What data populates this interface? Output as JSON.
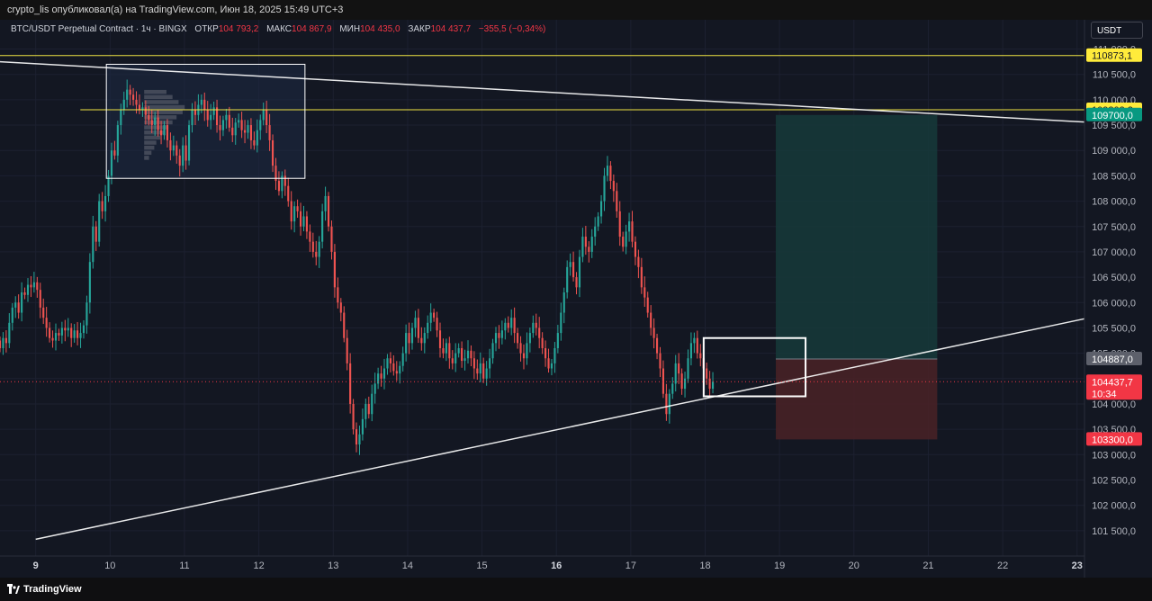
{
  "header": {
    "publish_line": "crypto_lis опубликовал(а) на TradingView.com, Июн 18, 2025 15:49 UTC+3"
  },
  "symbol": {
    "name": "BTC/USDT Perpetual Contract · 1ч · BINGX",
    "open_label": "ОТКР",
    "open": "104 793,2",
    "high_label": "МАКС",
    "high": "104 867,9",
    "low_label": "МИН",
    "low": "104 435,0",
    "close_label": "ЗАКР",
    "close": "104 437,7",
    "change": "−355,5 (−0,34%)"
  },
  "currency_button": "USDT",
  "footer": {
    "brand": "TradingView"
  },
  "colors": {
    "background": "#131722",
    "up": "#26a69a",
    "down": "#ef5350",
    "yellow_line": "#f0e442",
    "trend_line": "#ffffff",
    "target_zone": "#163a3a",
    "stop_zone": "#4a2226",
    "price_label_red": "#f23645",
    "price_label_teal": "#089981",
    "price_label_grey": "#5d606b",
    "price_label_yellow": "#ffeb3b"
  },
  "chart_data": {
    "type": "candlestick",
    "ylim": [
      101000,
      111400
    ],
    "y_ticks": [
      101500,
      102000,
      102500,
      103000,
      103500,
      104000,
      104500,
      105000,
      105500,
      106000,
      106500,
      107000,
      107500,
      108000,
      108500,
      109000,
      109500,
      110000,
      110500,
      111000
    ],
    "y_tick_labels": [
      "101 500,0",
      "102 000,0",
      "102 500,0",
      "103 000,0",
      "103 500,0",
      "104 000,0",
      "104 500,0",
      "105 000,0",
      "105 500,0",
      "106 000,0",
      "106 500,0",
      "107 000,0",
      "107 500,0",
      "108 000,0",
      "108 500,0",
      "109 000,0",
      "109 500,0",
      "110 000,0",
      "110 500,0",
      "111 000,0"
    ],
    "x_domain_days": [
      8.52,
      23.1
    ],
    "x_ticks": [
      {
        "day": 9,
        "label": "9",
        "major": true
      },
      {
        "day": 10,
        "label": "10",
        "major": false
      },
      {
        "day": 11,
        "label": "11",
        "major": false
      },
      {
        "day": 12,
        "label": "12",
        "major": false
      },
      {
        "day": 13,
        "label": "13",
        "major": false
      },
      {
        "day": 14,
        "label": "14",
        "major": false
      },
      {
        "day": 15,
        "label": "15",
        "major": false
      },
      {
        "day": 16,
        "label": "16",
        "major": true
      },
      {
        "day": 17,
        "label": "17",
        "major": false
      },
      {
        "day": 18,
        "label": "18",
        "major": false
      },
      {
        "day": 19,
        "label": "19",
        "major": false
      },
      {
        "day": 20,
        "label": "20",
        "major": false
      },
      {
        "day": 21,
        "label": "21",
        "major": false
      },
      {
        "day": 22,
        "label": "22",
        "major": false
      },
      {
        "day": 23,
        "label": "23",
        "major": true
      }
    ],
    "candle_start_day": 8.52,
    "candle_step_days": 0.041667,
    "closes": [
      105100,
      105300,
      105200,
      105600,
      105900,
      106000,
      105800,
      106200,
      106150,
      106350,
      106300,
      106400,
      106250,
      105900,
      105700,
      105500,
      105300,
      105250,
      105400,
      105350,
      105500,
      105450,
      105500,
      105300,
      105450,
      105300,
      105400,
      105550,
      106000,
      106800,
      107500,
      107200,
      108000,
      107800,
      108100,
      108500,
      109000,
      108900,
      109500,
      109800,
      110000,
      110200,
      110100,
      110000,
      109900,
      109800,
      109850,
      109700,
      109600,
      109500,
      109650,
      109400,
      109300,
      109500,
      109200,
      109000,
      109100,
      108900,
      108700,
      109100,
      108800,
      109500,
      109800,
      109700,
      109900,
      110000,
      109800,
      109600,
      109700,
      109850,
      109500,
      109400,
      109600,
      109700,
      109450,
      109300,
      109550,
      109600,
      109400,
      109350,
      109500,
      109200,
      109100,
      109400,
      109600,
      109800,
      109500,
      109200,
      108700,
      108400,
      108200,
      108500,
      108300,
      108000,
      107600,
      107900,
      107800,
      107500,
      107700,
      107400,
      107200,
      107000,
      106900,
      107200,
      107800,
      108100,
      107500,
      107000,
      106300,
      106000,
      105800,
      105300,
      104800,
      104000,
      103500,
      103200,
      103400,
      103700,
      104000,
      103800,
      104200,
      104400,
      104600,
      104500,
      104700,
      104900,
      104800,
      104650,
      104600,
      104750,
      105000,
      105400,
      105200,
      105500,
      105700,
      105300,
      105200,
      105400,
      105600,
      105800,
      105700,
      105450,
      105100,
      105000,
      105200,
      104900,
      104800,
      105000,
      105100,
      104850,
      104900,
      105050,
      104900,
      104700,
      104600,
      104800,
      104500,
      104700,
      104900,
      105200,
      105400,
      105300,
      105450,
      105600,
      105500,
      105700,
      105400,
      105200,
      105000,
      104900,
      105200,
      105400,
      105600,
      105500,
      105300,
      105100,
      104900,
      104700,
      104800,
      105100,
      105400,
      105800,
      106200,
      106700,
      106800,
      106500,
      106300,
      106900,
      107300,
      107100,
      107000,
      107300,
      107500,
      107700,
      108000,
      108500,
      108700,
      108400,
      108200,
      107800,
      107300,
      107100,
      107400,
      107600,
      107200,
      106900,
      106700,
      106300,
      106100,
      105800,
      105500,
      105300,
      105000,
      104700,
      104200,
      103800,
      104200,
      104400,
      104800,
      104600,
      104300,
      104500,
      104900,
      105200,
      105300,
      105000,
      104900,
      104700,
      104500,
      104300,
      104437.7
    ],
    "volume_profile_bins": [
      [
        110150,
        0.55
      ],
      [
        110050,
        0.7
      ],
      [
        109950,
        0.85
      ],
      [
        109850,
        1.0
      ],
      [
        109750,
        0.95
      ],
      [
        109650,
        0.8
      ],
      [
        109550,
        0.7
      ],
      [
        109450,
        0.6
      ],
      [
        109350,
        0.5
      ],
      [
        109250,
        0.4
      ],
      [
        109150,
        0.3
      ],
      [
        109050,
        0.25
      ],
      [
        108950,
        0.18
      ],
      [
        108850,
        0.12
      ]
    ],
    "horizontal_levels": [
      {
        "price": 110873.1,
        "label": "110873,1",
        "role": "level"
      },
      {
        "price": 109803.2,
        "label": "109803,2",
        "role": "level"
      }
    ],
    "trendlines": [
      {
        "start": {
          "day": 8.52,
          "price": 110750
        },
        "end": {
          "day": 23.1,
          "price": 109560
        }
      },
      {
        "start": {
          "day": 9.0,
          "price": 101330
        },
        "end": {
          "day": 23.1,
          "price": 105680
        }
      }
    ],
    "rectangles": [
      {
        "role": "consolidation_box",
        "day_from": 9.95,
        "day_to": 12.62,
        "price_from": 108450,
        "price_to": 110700
      },
      {
        "role": "breakout_box",
        "day_from": 17.98,
        "day_to": 19.35,
        "price_from": 104150,
        "price_to": 105300
      }
    ],
    "position": {
      "day_from": 18.95,
      "day_to": 21.12,
      "entry": 104887.0,
      "target": 109700.0,
      "stop": 103300.0
    },
    "price_labels": [
      {
        "price": 110873.1,
        "text": "110873,1",
        "color": "yellow"
      },
      {
        "price": 109803.2,
        "text": "109803,2",
        "color": "yellow"
      },
      {
        "price": 109700.0,
        "text": "109700,0",
        "color": "teal"
      },
      {
        "price": 104887.0,
        "text": "104887,0",
        "color": "grey"
      },
      {
        "price": 104437.7,
        "text": "104437,7",
        "sub": "10:34",
        "color": "red"
      },
      {
        "price": 103300.0,
        "text": "103300,0",
        "color": "red"
      }
    ]
  }
}
